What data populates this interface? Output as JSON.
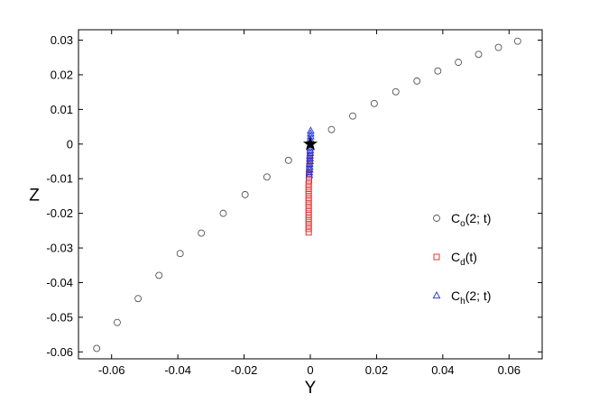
{
  "chart_data": {
    "type": "scatter",
    "title": "",
    "xlabel": "Y",
    "ylabel": "Z",
    "xlim": [
      -0.07,
      0.07
    ],
    "ylim": [
      -0.062,
      0.033
    ],
    "xticks": [
      -0.06,
      -0.04,
      -0.02,
      0,
      0.02,
      0.04,
      0.06
    ],
    "xtick_labels": [
      "-0.06",
      "-0.04",
      "-0.02",
      "0",
      "0.02",
      "0.04",
      "0.06"
    ],
    "yticks": [
      0.03,
      0.02,
      0.01,
      0,
      -0.01,
      -0.02,
      -0.03,
      -0.04,
      -0.05,
      -0.06
    ],
    "ytick_labels": [
      "0.03",
      "0.02",
      "0.01",
      "0",
      "-0.01",
      "-0.02",
      "-0.03",
      "-0.04",
      "-0.05",
      "-0.06"
    ],
    "grid": false,
    "legend_position": "right",
    "series": [
      {
        "legend": {
          "main": "C",
          "sub": "o",
          "tail": "(2; t)"
        },
        "marker": "circle",
        "color": "#555555",
        "points": [
          [
            -0.0645,
            -0.059
          ],
          [
            -0.0583,
            -0.0515
          ],
          [
            -0.052,
            -0.0446
          ],
          [
            -0.0457,
            -0.0379
          ],
          [
            -0.0393,
            -0.0316
          ],
          [
            -0.0329,
            -0.0257
          ],
          [
            -0.0263,
            -0.02
          ],
          [
            -0.0197,
            -0.0146
          ],
          [
            -0.0131,
            -0.0095
          ],
          [
            -0.0066,
            -0.0047
          ],
          [
            0.0064,
            0.0042
          ],
          [
            0.0128,
            0.0081
          ],
          [
            0.0193,
            0.0117
          ],
          [
            0.0258,
            0.0151
          ],
          [
            0.0322,
            0.0182
          ],
          [
            0.0385,
            0.0211
          ],
          [
            0.0447,
            0.0236
          ],
          [
            0.0508,
            0.0259
          ],
          [
            0.0568,
            0.0279
          ],
          [
            0.0626,
            0.0297
          ]
        ]
      },
      {
        "legend": {
          "main": "C",
          "sub": "d",
          "tail": "(t)"
        },
        "marker": "square",
        "color": "#dd2222",
        "points": [
          [
            -0.0005,
            -0.0255
          ],
          [
            -0.0005,
            -0.0245
          ],
          [
            -0.0005,
            -0.0235
          ],
          [
            -0.0005,
            -0.0225
          ],
          [
            -0.0005,
            -0.0215
          ],
          [
            -0.0005,
            -0.0205
          ],
          [
            -0.0005,
            -0.0195
          ],
          [
            -0.0005,
            -0.0185
          ],
          [
            -0.0005,
            -0.0175
          ],
          [
            -0.0005,
            -0.0165
          ],
          [
            -0.0005,
            -0.0155
          ],
          [
            -0.0005,
            -0.0145
          ],
          [
            -0.0005,
            -0.0135
          ],
          [
            -0.0005,
            -0.0125
          ],
          [
            -0.0005,
            -0.0115
          ],
          [
            -0.0004,
            -0.0105
          ],
          [
            -0.0004,
            -0.0095
          ],
          [
            -0.0004,
            -0.0085
          ],
          [
            -0.0003,
            -0.0075
          ],
          [
            -0.0003,
            -0.0065
          ],
          [
            -0.0002,
            -0.0055
          ],
          [
            -0.0002,
            -0.0045
          ],
          [
            -0.0001,
            -0.0035
          ],
          [
            -0.0001,
            -0.0025
          ]
        ]
      },
      {
        "legend": {
          "main": "C",
          "sub": "h",
          "tail": "(2; t)"
        },
        "marker": "triangle",
        "color": "#2233dd",
        "points": [
          [
            -0.0003,
            -0.009
          ],
          [
            -0.0003,
            -0.0082
          ],
          [
            -0.0002,
            -0.0074
          ],
          [
            -0.0002,
            -0.0066
          ],
          [
            -0.0002,
            -0.0058
          ],
          [
            -0.0001,
            -0.005
          ],
          [
            -0.0001,
            -0.0042
          ],
          [
            -0.0001,
            -0.0034
          ],
          [
            0.0,
            -0.0026
          ],
          [
            0.0,
            -0.0018
          ],
          [
            0.0,
            -0.001
          ],
          [
            0.0,
            -0.0002
          ],
          [
            0.0,
            0.0006
          ],
          [
            0.0,
            0.0014
          ],
          [
            0.0001,
            0.0022
          ],
          [
            0.0001,
            0.003
          ],
          [
            0.0001,
            0.0038
          ]
        ]
      }
    ],
    "origin_marker": {
      "shape": "star",
      "color": "#000000",
      "point": [
        0,
        0
      ]
    }
  }
}
